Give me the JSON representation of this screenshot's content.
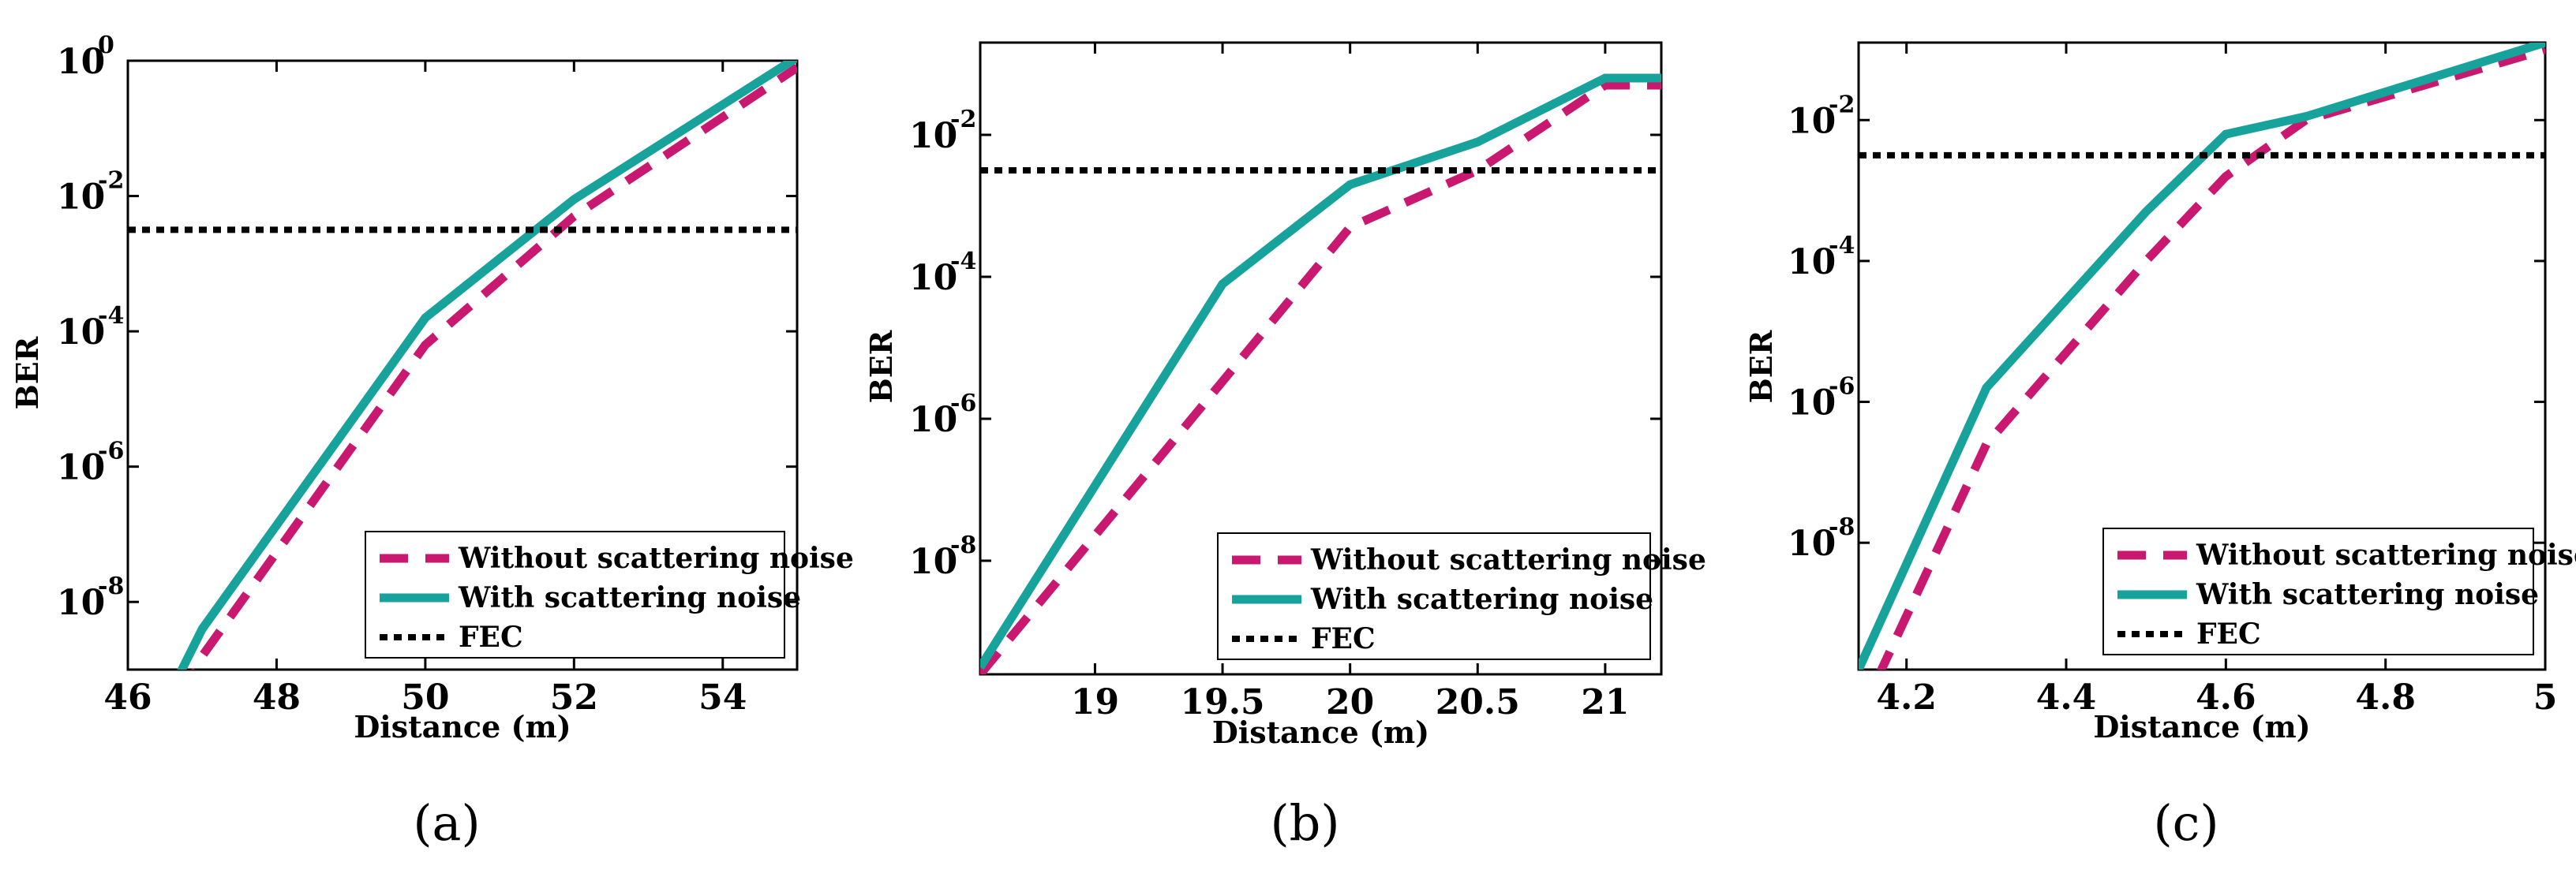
{
  "colors": {
    "without_noise": "#c8186f",
    "with_noise": "#17a29c",
    "fec": "#000000"
  },
  "chart_data": [
    {
      "type": "line",
      "panel_label": "(a)",
      "xlabel": "Distance (m)",
      "ylabel": "BER",
      "yscale": "log",
      "xlim": [
        46,
        55
      ],
      "ylim_exp": [
        -9.0,
        0
      ],
      "x_ticks": [
        46,
        48,
        50,
        52,
        54
      ],
      "x_tick_labels": [
        "46",
        "48",
        "50",
        "52",
        "54"
      ],
      "y_tick_exps": [
        0,
        -2,
        -4,
        -6,
        -8
      ],
      "y_tick_base": "10",
      "y_tick_exp_labels": [
        "0",
        "-2",
        "-4",
        "-6",
        "-8"
      ],
      "legend_position": "bottom-right",
      "series": [
        {
          "name": "Without scattering noise",
          "style": "dashed",
          "x": [
            46.5,
            47.0,
            50.0,
            52.0,
            55.0
          ],
          "log10_y": [
            -10.0,
            -8.8,
            -4.2,
            -2.3,
            -0.1
          ]
        },
        {
          "name": "With scattering noise",
          "style": "solid",
          "x": [
            46.5,
            47.0,
            50.0,
            52.0,
            55.0
          ],
          "log10_y": [
            -9.5,
            -8.4,
            -3.8,
            -2.05,
            0.05
          ]
        },
        {
          "name": "FEC",
          "style": "dotted",
          "x": [
            46,
            55
          ],
          "log10_y": [
            -2.5,
            -2.5
          ]
        }
      ]
    },
    {
      "type": "line",
      "panel_label": "(b)",
      "xlabel": "Distance (m)",
      "ylabel": "BER",
      "yscale": "log",
      "xlim": [
        18.55,
        21.22
      ],
      "ylim_exp": [
        -9.6,
        -0.7
      ],
      "x_ticks": [
        19,
        19.5,
        20,
        20.5,
        21
      ],
      "x_tick_labels": [
        "19",
        "19.5",
        "20",
        "20.5",
        "21"
      ],
      "y_tick_exps": [
        -2,
        -4,
        -6,
        -8
      ],
      "y_tick_base": "10",
      "y_tick_exp_labels": [
        "-2",
        "-4",
        "-6",
        "-8"
      ],
      "legend_position": "bottom-right",
      "series": [
        {
          "name": "Without scattering noise",
          "style": "dashed",
          "x": [
            18.55,
            20.0,
            20.5,
            21.0,
            21.22
          ],
          "log10_y": [
            -9.6,
            -3.3,
            -2.5,
            -1.3,
            -1.3
          ]
        },
        {
          "name": "With scattering noise",
          "style": "solid",
          "x": [
            18.55,
            19.5,
            20.0,
            20.5,
            21.0,
            21.22
          ],
          "log10_y": [
            -9.5,
            -4.1,
            -2.7,
            -2.1,
            -1.2,
            -1.2
          ]
        },
        {
          "name": "FEC",
          "style": "dotted",
          "x": [
            18.55,
            21.22
          ],
          "log10_y": [
            -2.5,
            -2.5
          ]
        }
      ]
    },
    {
      "type": "line",
      "panel_label": "(c)",
      "xlabel": "Distance (m)",
      "ylabel": "BER",
      "yscale": "log",
      "xlim": [
        4.14,
        5.0
      ],
      "ylim_exp": [
        -9.8,
        -0.9
      ],
      "x_ticks": [
        4.2,
        4.4,
        4.6,
        4.8,
        5
      ],
      "x_tick_labels": [
        "4.2",
        "4.4",
        "4.6",
        "4.8",
        "5"
      ],
      "y_tick_exps": [
        -2,
        -4,
        -6,
        -8
      ],
      "y_tick_base": "10",
      "y_tick_exp_labels": [
        "-2",
        "-4",
        "-6",
        "-8"
      ],
      "legend_position": "bottom-right",
      "series": [
        {
          "name": "Without scattering noise",
          "style": "dashed",
          "x": [
            4.14,
            4.3,
            4.5,
            4.6,
            4.7,
            5.0
          ],
          "log10_y": [
            -10.5,
            -6.6,
            -4.0,
            -2.8,
            -2.0,
            -1.0
          ]
        },
        {
          "name": "With scattering noise",
          "style": "solid",
          "x": [
            4.14,
            4.3,
            4.5,
            4.6,
            4.7,
            5.0
          ],
          "log10_y": [
            -9.8,
            -5.8,
            -3.3,
            -2.2,
            -1.95,
            -0.9
          ]
        },
        {
          "name": "FEC",
          "style": "dotted",
          "x": [
            4.14,
            5.0
          ],
          "log10_y": [
            -2.5,
            -2.5
          ]
        }
      ]
    }
  ]
}
